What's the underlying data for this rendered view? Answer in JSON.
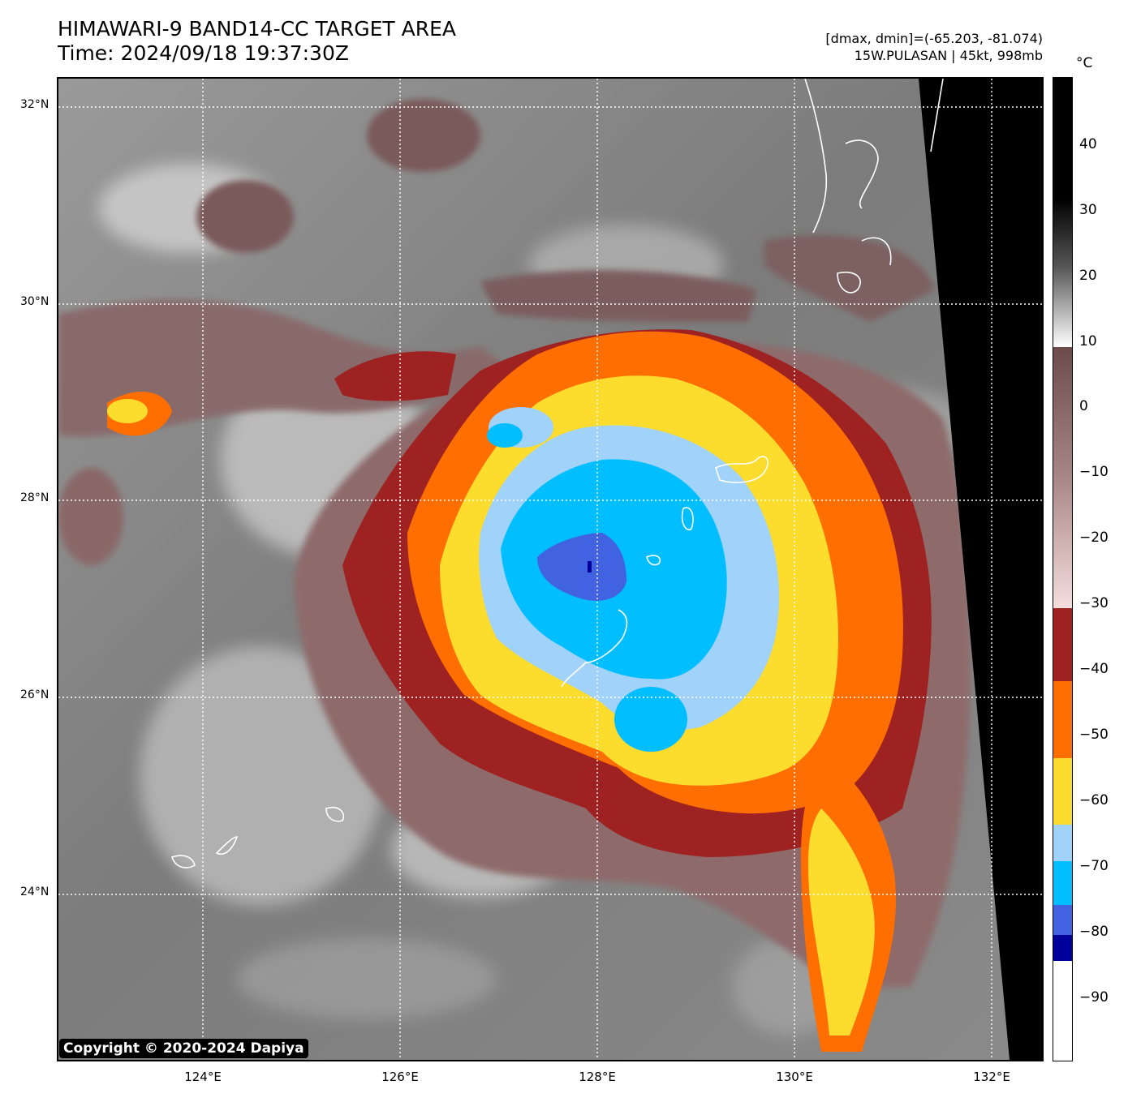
{
  "header": {
    "title": "HIMAWARI-9 BAND14-CC TARGET AREA",
    "time": "Time: 2024/09/18 19:37:30Z",
    "range": "[dmax, dmin]=(-65.203, -81.074)",
    "storm": "15W.PULASAN | 45kt, 998mb"
  },
  "map": {
    "lat_labels": [
      "32°N",
      "30°N",
      "28°N",
      "26°N",
      "24°N"
    ],
    "lon_labels": [
      "124°E",
      "126°E",
      "128°E",
      "130°E",
      "132°E"
    ],
    "grid": true,
    "copyright": "Copyright © 2020-2024 Dapiya",
    "palette": {
      "background_gray": "#8a8a8a",
      "brown": "#8e6a6a",
      "dark_red": "#9e2222",
      "orange": "#ff6e00",
      "yellow": "#fcdc2c",
      "light_blue": "#a0d2fa",
      "cyan": "#00beff",
      "royal_blue": "#4163e1",
      "navy": "#00009a",
      "no_data": "#000000",
      "coastline": "#ffffff"
    }
  },
  "colorbar": {
    "unit": "°C",
    "tick_labels": [
      "40",
      "30",
      "20",
      "10",
      "0",
      "−10",
      "−20",
      "−30",
      "−40",
      "−50",
      "−60",
      "−70",
      "−80",
      "−90"
    ],
    "range": [
      -100,
      50
    ]
  }
}
